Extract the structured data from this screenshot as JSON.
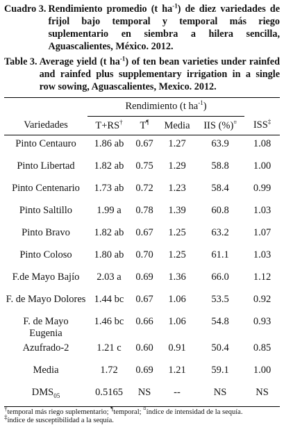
{
  "caption": {
    "es": {
      "label": "Cuadro 3.",
      "text": [
        "Rendimiento promedio (t ha",
        "-1",
        ") de diez variedades de frijol bajo temporal y temporal más riego suplementario en siembra a hilera sencilla, Aguascalientes, México. 2012."
      ]
    },
    "en": {
      "label": "Table 3.",
      "text": [
        "Average yield (t ha",
        "-1",
        ") of ten bean varieties under rainfed and rainfed plus supplementary irrigation in a single row sowing, Aguascalientes, Mexico. 2012."
      ]
    }
  },
  "table": {
    "group_header": [
      "Rendimiento (t ha",
      "-1",
      ")"
    ],
    "columns": [
      [
        "Variedades"
      ],
      [
        "T+RS",
        "†"
      ],
      [
        "T",
        "¶"
      ],
      [
        "Media"
      ],
      [
        "IIS (%)",
        "¤"
      ],
      [
        "ISS",
        "‡"
      ]
    ],
    "rows": [
      [
        "Pinto Centauro",
        "1.86 ab",
        "0.67",
        "1.27",
        "63.9",
        "1.08"
      ],
      [
        "Pinto Libertad",
        "1.82 ab",
        "0.75",
        "1.29",
        "58.8",
        "1.00"
      ],
      [
        "Pinto Centenario",
        "1.73 ab",
        "0.72",
        "1.23",
        "58.4",
        "0.99"
      ],
      [
        "Pinto Saltillo",
        "1.99 a",
        "0.78",
        "1.39",
        "60.8",
        "1.03"
      ],
      [
        "Pinto Bravo",
        "1.82 ab",
        "0.67",
        "1.25",
        "63.2",
        "1.07"
      ],
      [
        "Pinto Coloso",
        "1.80 ab",
        "0.70",
        "1.25",
        "61.1",
        "1.03"
      ],
      [
        "F.de Mayo Bajío",
        "2.03 a",
        "0.69",
        "1.36",
        "66.0",
        "1.12"
      ],
      [
        "F. de Mayo Dolores",
        "1.44 bc",
        "0.67",
        "1.06",
        "53.5",
        "0.92"
      ],
      [
        "F. de Mayo Eugenia",
        "1.46 bc",
        "0.66",
        "1.06",
        "54.8",
        "0.93"
      ],
      [
        "Azufrado-2",
        "1.21 c",
        "0.60",
        "0.91",
        "50.4",
        "0.85"
      ],
      [
        "Media",
        "1.72",
        "0.69",
        "1.21",
        "59.1",
        "1.00"
      ],
      [
        [
          "DMS",
          "05"
        ],
        "0.5165",
        "NS",
        "--",
        "NS",
        "NS"
      ]
    ]
  },
  "footnotes": [
    [
      "†",
      "temporal más riego suplementario; ",
      "¶",
      "temporal; ",
      "¤",
      "índice de intensidad de la sequía."
    ],
    [
      "‡",
      "índice de susceptibilidad a la sequía."
    ]
  ]
}
